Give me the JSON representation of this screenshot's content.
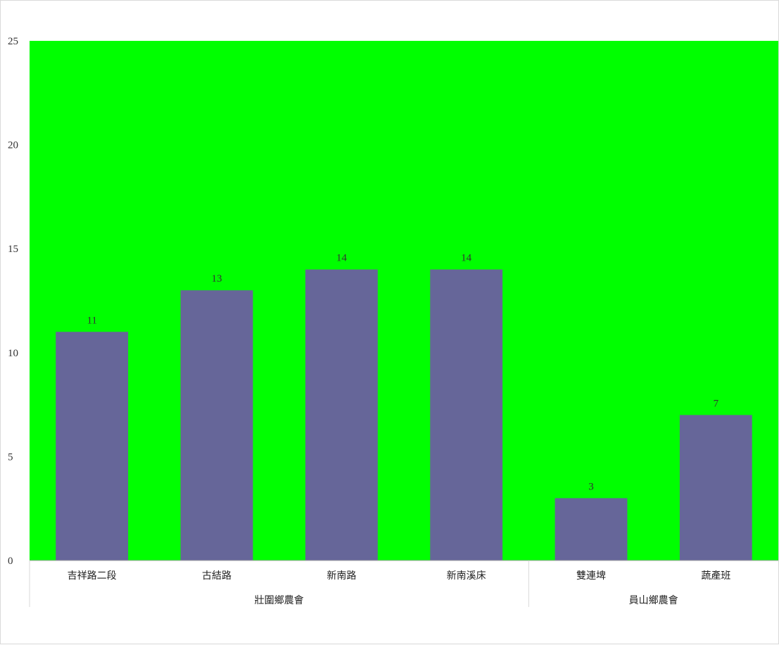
{
  "chart_data": {
    "type": "bar",
    "title": "",
    "xlabel": "",
    "ylabel": "",
    "ylim": [
      0,
      25
    ],
    "yticks": [
      0,
      5,
      10,
      15,
      20,
      25
    ],
    "grid": false,
    "legend": "none",
    "categories": [
      "吉祥路二段",
      "古結路",
      "新南路",
      "新南溪床",
      "雙連埤",
      "蔬產班"
    ],
    "values": [
      11,
      13,
      14,
      14,
      3,
      7
    ],
    "groups": [
      {
        "label": "壯圍鄉農會",
        "count": 4
      },
      {
        "label": "員山鄉農會",
        "count": 2
      }
    ],
    "colors": {
      "plot_background": "#00ff00",
      "bar": "#666699",
      "axis": "#a6a6a6"
    }
  }
}
